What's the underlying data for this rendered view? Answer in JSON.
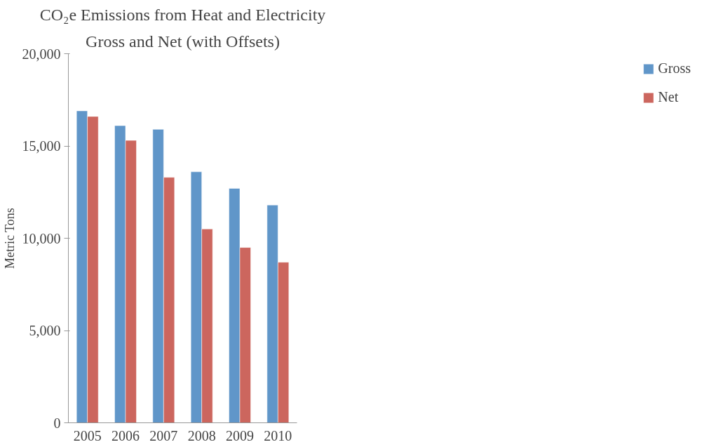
{
  "chart_data": {
    "type": "bar",
    "title": "CO₂e Emissions from Heat and Electricity",
    "subtitle": "Gross and Net (with Offsets)",
    "ylabel": "Metric Tons",
    "categories": [
      "2005",
      "2006",
      "2007",
      "2008",
      "2009",
      "2010"
    ],
    "series": [
      {
        "name": "Gross",
        "color": "#6096c9",
        "values": [
          16900,
          16100,
          15900,
          13600,
          12700,
          11800
        ]
      },
      {
        "name": "Net",
        "color": "#cc665e",
        "values": [
          16600,
          15300,
          13300,
          10500,
          9500,
          8700
        ]
      }
    ],
    "ylim": [
      0,
      20000
    ],
    "yticks": [
      {
        "value": 0,
        "label": "0"
      },
      {
        "value": 5000,
        "label": "5,000"
      },
      {
        "value": 10000,
        "label": "10,000"
      },
      {
        "value": 15000,
        "label": "15,000"
      },
      {
        "value": 20000,
        "label": "20,000"
      }
    ],
    "grid": false,
    "legend": "right"
  }
}
